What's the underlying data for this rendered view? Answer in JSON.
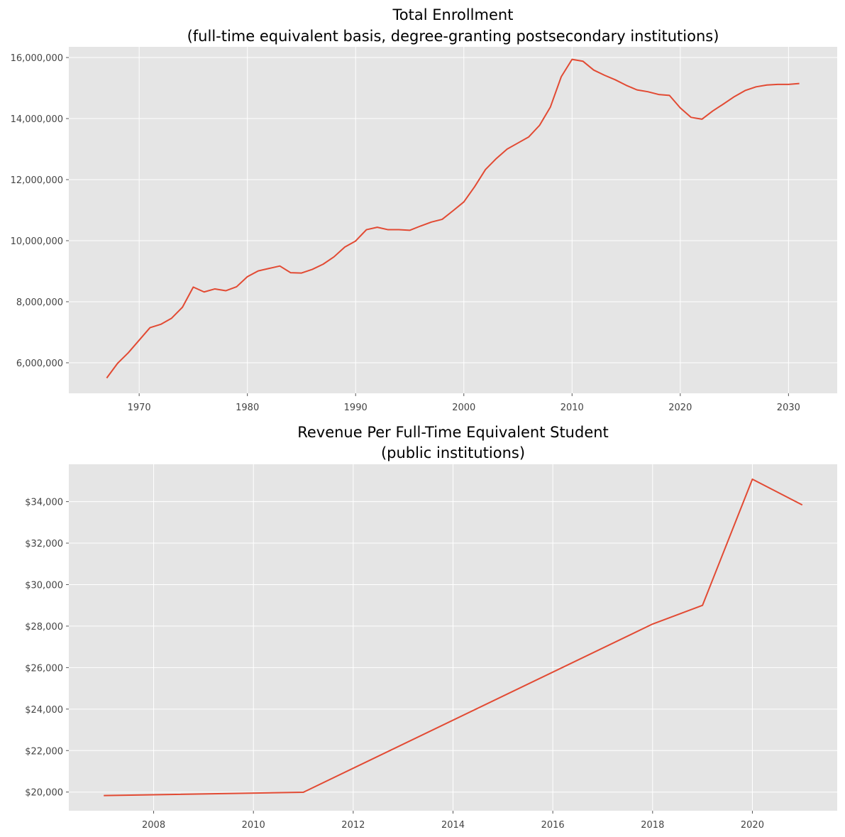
{
  "chart_data": [
    {
      "type": "line",
      "title": "Total Enrollment",
      "subtitle": "(full-time equivalent basis, degree-granting postsecondary institutions)",
      "xlabel": "",
      "ylabel": "",
      "xlim": [
        1963.5,
        2034.5
      ],
      "ylim": [
        5000000,
        16350000
      ],
      "xticks": [
        1970,
        1980,
        1990,
        2000,
        2010,
        2020,
        2030
      ],
      "xtick_labels": [
        "1970",
        "1980",
        "1990",
        "2000",
        "2010",
        "2020",
        "2030"
      ],
      "yticks": [
        6000000,
        8000000,
        10000000,
        12000000,
        14000000,
        16000000
      ],
      "ytick_labels": [
        "6,000,000",
        "8,000,000",
        "10,000,000",
        "12,000,000",
        "14,000,000",
        "16,000,000"
      ],
      "grid": true,
      "color": "#e24a33",
      "series": [
        {
          "x": [
            1967,
            1968,
            1969,
            1970,
            1971,
            1972,
            1973,
            1974,
            1975,
            1976,
            1977,
            1978,
            1979,
            1980,
            1981,
            1982,
            1983,
            1984,
            1985,
            1986,
            1987,
            1988,
            1989,
            1990,
            1991,
            1992,
            1993,
            1994,
            1995,
            1996,
            1997,
            1998,
            1999,
            2000,
            2001,
            2002,
            2003,
            2004,
            2005,
            2006,
            2007,
            2008,
            2009,
            2010,
            2011,
            2012,
            2013,
            2014,
            2015,
            2016,
            2017,
            2018,
            2019,
            2020,
            2021,
            2022,
            2023,
            2024,
            2025,
            2026,
            2027,
            2028,
            2029,
            2030,
            2031
          ],
          "values": [
            5500000,
            5980000,
            6330000,
            6740000,
            7150000,
            7260000,
            7460000,
            7820000,
            8480000,
            8320000,
            8420000,
            8360000,
            8490000,
            8820000,
            9010000,
            9090000,
            9170000,
            8950000,
            8940000,
            9060000,
            9230000,
            9470000,
            9790000,
            9990000,
            10360000,
            10440000,
            10360000,
            10360000,
            10340000,
            10480000,
            10610000,
            10700000,
            10980000,
            11270000,
            11770000,
            12330000,
            12690000,
            13000000,
            13200000,
            13400000,
            13780000,
            14380000,
            15370000,
            15940000,
            15880000,
            15590000,
            15420000,
            15270000,
            15090000,
            14940000,
            14880000,
            14790000,
            14760000,
            14350000,
            14040000,
            13980000,
            14250000,
            14480000,
            14720000,
            14920000,
            15040000,
            15100000,
            15120000,
            15120000,
            15150000
          ]
        }
      ]
    },
    {
      "type": "line",
      "title": "Revenue Per Full-Time Equivalent Student",
      "subtitle": "(public institutions)",
      "xlabel": "",
      "ylabel": "",
      "xlim": [
        2006.3,
        2021.7
      ],
      "ylim": [
        19100,
        35800
      ],
      "xticks": [
        2008,
        2010,
        2012,
        2014,
        2016,
        2018,
        2020
      ],
      "xtick_labels": [
        "2008",
        "2010",
        "2012",
        "2014",
        "2016",
        "2018",
        "2020"
      ],
      "yticks": [
        20000,
        22000,
        24000,
        26000,
        28000,
        30000,
        32000,
        34000
      ],
      "ytick_labels": [
        "$20,000",
        "$22,000",
        "$24,000",
        "$26,000",
        "$28,000",
        "$30,000",
        "$32,000",
        "$34,000"
      ],
      "grid": true,
      "color": "#e24a33",
      "series": [
        {
          "x": [
            2007,
            2011,
            2018,
            2019,
            2020,
            2021
          ],
          "values": [
            19830,
            19990,
            28100,
            29000,
            35080,
            33840
          ]
        }
      ]
    }
  ]
}
